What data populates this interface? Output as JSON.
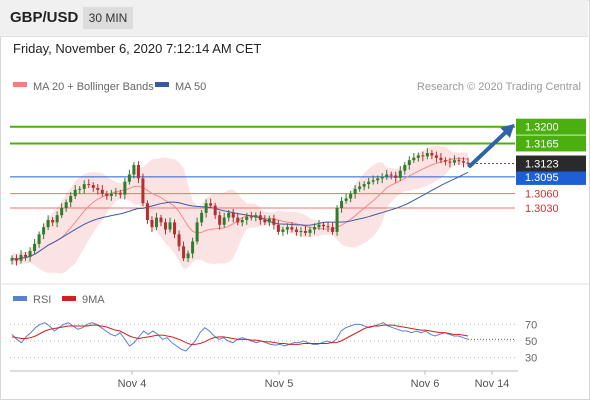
{
  "header": {
    "symbol": "GBP/USD",
    "timeframe": "30 MIN",
    "datetime": "Friday, November 6, 2020 7:12:14 AM CET"
  },
  "legend": {
    "ma20": "MA 20 + Bollinger Bands",
    "ma50": "MA 50",
    "credit": "Research © 2020 Trading Central"
  },
  "colors": {
    "up": "#2e7d2e",
    "down": "#b33030",
    "resistance": "#4caf10",
    "support": "#f07070",
    "price": "#1f5fd6",
    "ma50": "#3b5aa0",
    "arrow": "#2f64a8"
  },
  "chart_data": [
    {
      "type": "candlestick",
      "ylim": [
        1.289,
        1.326
      ],
      "x_ticks": [
        "Nov 4",
        "Nov 5",
        "Nov 6",
        "Nov 14"
      ],
      "current_price": "1.3123",
      "levels": [
        {
          "label": "1.3200",
          "value": 1.32,
          "kind": "resistance"
        },
        {
          "label": "1.3165",
          "value": 1.3165,
          "kind": "resistance"
        },
        {
          "label": "1.3095",
          "value": 1.3095,
          "kind": "pivot"
        },
        {
          "label": "1.3060",
          "value": 1.306,
          "kind": "support"
        },
        {
          "label": "1.3030",
          "value": 1.303,
          "kind": "support"
        }
      ],
      "close_series": [
        1.2925,
        1.292,
        1.2932,
        1.2928,
        1.294,
        1.2955,
        1.2975,
        1.299,
        1.3005,
        1.3,
        1.3015,
        1.303,
        1.3042,
        1.3055,
        1.3068,
        1.307,
        1.308,
        1.3078,
        1.3072,
        1.3068,
        1.306,
        1.3055,
        1.306,
        1.3062,
        1.3058,
        1.3085,
        1.31,
        1.312,
        1.3092,
        1.304,
        1.3005,
        1.299,
        1.301,
        1.3,
        1.2985,
        1.3,
        1.2975,
        1.295,
        1.2925,
        1.2935,
        1.296,
        1.3,
        1.302,
        1.304,
        1.3035,
        1.3015,
        1.2995,
        1.301,
        1.302,
        1.301,
        1.3,
        1.3005,
        1.3012,
        1.301,
        1.3015,
        1.3005,
        1.3,
        1.3008,
        1.2995,
        1.298,
        1.2985,
        1.299,
        1.2985,
        1.298,
        1.2982,
        1.2978,
        1.2985,
        1.299,
        1.2995,
        1.2992,
        1.299,
        1.298,
        1.303,
        1.3045,
        1.305,
        1.306,
        1.307,
        1.3075,
        1.308,
        1.3085,
        1.3088,
        1.3092,
        1.3095,
        1.31,
        1.3098,
        1.3093,
        1.3108,
        1.312,
        1.313,
        1.3135,
        1.314,
        1.3138,
        1.3145,
        1.314,
        1.3135,
        1.313,
        1.3127,
        1.3125,
        1.313,
        1.3128,
        1.3125,
        1.3123
      ]
    },
    {
      "type": "line",
      "series": [
        {
          "name": "RSI",
          "values": [
            58,
            52,
            48,
            55,
            60,
            66,
            70,
            72,
            68,
            62,
            66,
            70,
            72,
            68,
            64,
            66,
            70,
            72,
            70,
            66,
            62,
            58,
            56,
            60,
            52,
            44,
            48,
            55,
            62,
            58,
            62,
            58,
            52,
            54,
            48,
            44,
            40,
            38,
            44,
            50,
            60,
            66,
            62,
            56,
            52,
            54,
            50,
            48,
            52,
            54,
            52,
            50,
            48,
            50,
            48,
            46,
            45,
            46,
            44,
            46,
            48,
            48,
            50,
            48,
            46,
            46,
            48,
            50,
            48,
            52,
            62,
            66,
            68,
            70,
            70,
            68,
            66,
            68,
            70,
            72,
            68,
            66,
            64,
            62,
            62,
            60,
            62,
            60,
            62,
            58,
            56,
            58,
            60,
            58,
            56,
            56,
            54,
            52
          ]
        },
        {
          "name": "9MA",
          "values": [
            55,
            54,
            53,
            53,
            54,
            56,
            59,
            62,
            64,
            65,
            66,
            67,
            68,
            68,
            68,
            68,
            68,
            69,
            69,
            68,
            67,
            65,
            63,
            62,
            59,
            56,
            54,
            53,
            54,
            55,
            56,
            57,
            57,
            56,
            55,
            53,
            51,
            48,
            46,
            46,
            47,
            49,
            52,
            54,
            55,
            55,
            54,
            53,
            52,
            52,
            52,
            51,
            51,
            50,
            49,
            49,
            48,
            47,
            47,
            46,
            46,
            46,
            47,
            47,
            47,
            47,
            47,
            47,
            48,
            48,
            50,
            53,
            56,
            59,
            62,
            65,
            67,
            68,
            68,
            69,
            69,
            69,
            68,
            67,
            66,
            65,
            64,
            63,
            63,
            62,
            61,
            60,
            60,
            59,
            58,
            58,
            57,
            56
          ]
        }
      ],
      "y_ticks": [
        "70",
        "50",
        "30"
      ]
    }
  ]
}
